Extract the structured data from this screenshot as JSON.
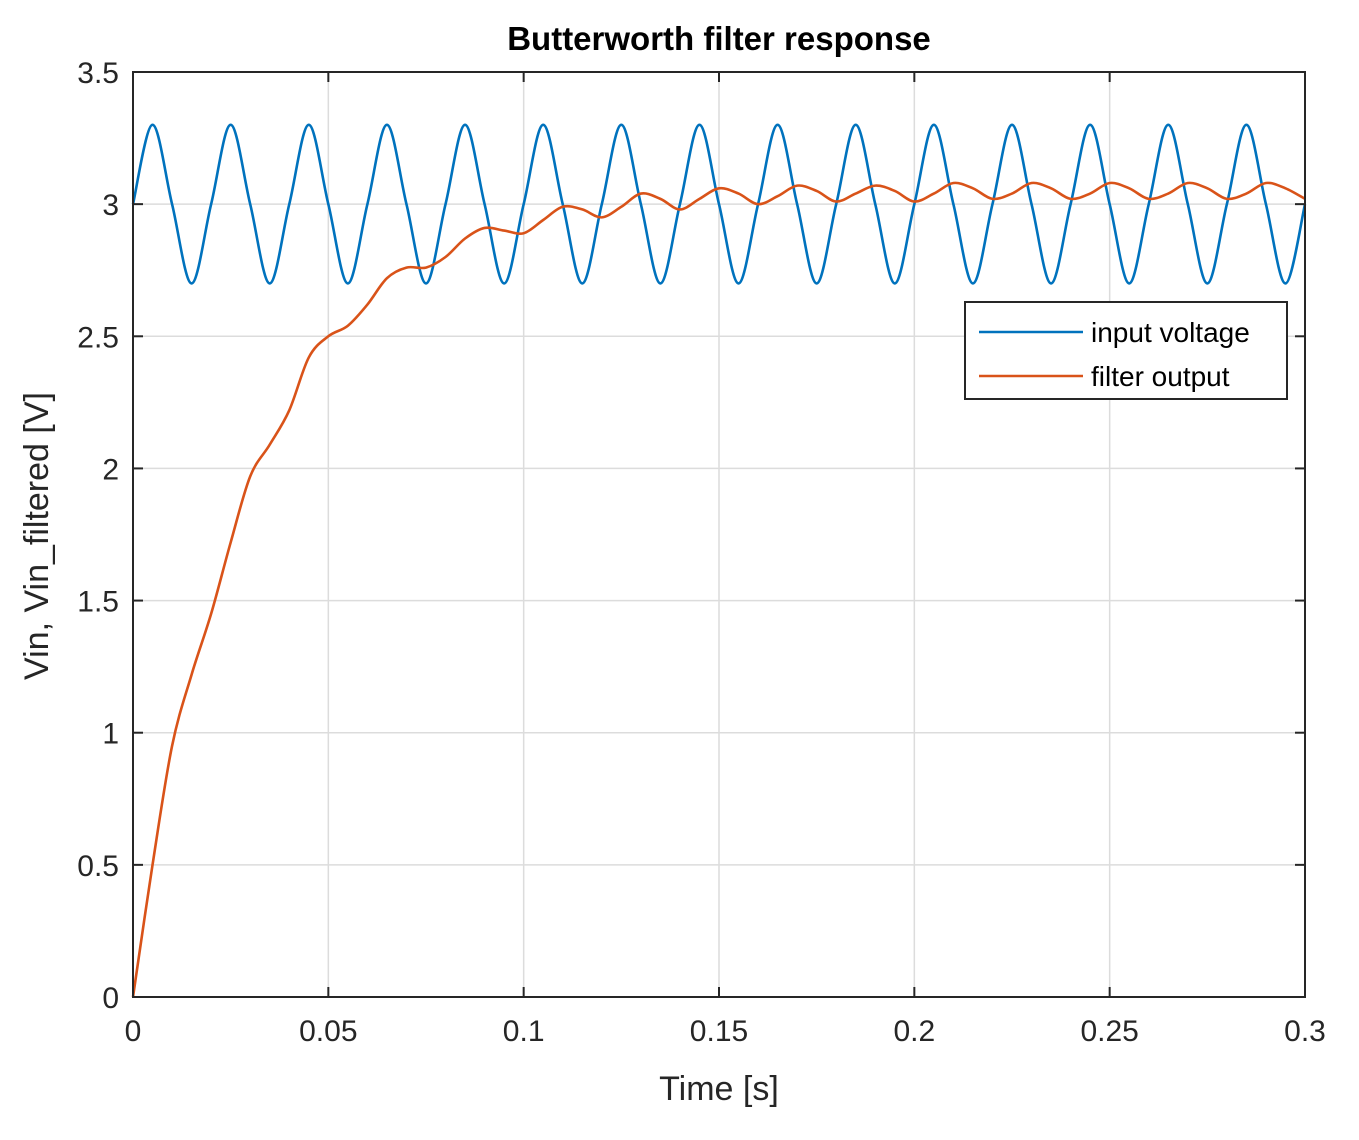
{
  "chart_data": {
    "type": "line",
    "title": "Butterworth filter response",
    "xlabel": "Time [s]",
    "ylabel": "Vin, Vin_filtered [V]",
    "xlim": [
      0,
      0.3
    ],
    "ylim": [
      0,
      3.5
    ],
    "x_ticks": [
      0,
      0.05,
      0.1,
      0.15,
      0.2,
      0.25,
      0.3
    ],
    "x_tick_labels": [
      "0",
      "0.05",
      "0.1",
      "0.15",
      "0.2",
      "0.25",
      "0.3"
    ],
    "y_ticks": [
      0,
      0.5,
      1,
      1.5,
      2,
      2.5,
      3,
      3.5
    ],
    "y_tick_labels": [
      "0",
      "0.5",
      "1",
      "1.5",
      "2",
      "2.5",
      "3",
      "3.5"
    ],
    "grid": true,
    "legend_position": "right, upper-middle",
    "series": [
      {
        "name": "input voltage",
        "color": "#0072BD",
        "points": [
          [
            0,
            3.0
          ],
          [
            0.005,
            3.3
          ],
          [
            0.01,
            3.0
          ],
          [
            0.015,
            2.7
          ],
          [
            0.02,
            3.0
          ],
          [
            0.025,
            3.3
          ],
          [
            0.03,
            3.0
          ],
          [
            0.035,
            2.7
          ],
          [
            0.04,
            3.0
          ],
          [
            0.045,
            3.3
          ],
          [
            0.05,
            3.0
          ],
          [
            0.055,
            2.7
          ],
          [
            0.06,
            3.0
          ],
          [
            0.065,
            3.3
          ],
          [
            0.07,
            3.0
          ],
          [
            0.075,
            2.7
          ],
          [
            0.08,
            3.0
          ],
          [
            0.085,
            3.3
          ],
          [
            0.09,
            3.0
          ],
          [
            0.095,
            2.7
          ],
          [
            0.1,
            3.0
          ],
          [
            0.105,
            3.3
          ],
          [
            0.11,
            3.0
          ],
          [
            0.115,
            2.7
          ],
          [
            0.12,
            3.0
          ],
          [
            0.125,
            3.3
          ],
          [
            0.13,
            3.0
          ],
          [
            0.135,
            2.7
          ],
          [
            0.14,
            3.0
          ],
          [
            0.145,
            3.3
          ],
          [
            0.15,
            3.0
          ],
          [
            0.155,
            2.7
          ],
          [
            0.16,
            3.0
          ],
          [
            0.165,
            3.3
          ],
          [
            0.17,
            3.0
          ],
          [
            0.175,
            2.7
          ],
          [
            0.18,
            3.0
          ],
          [
            0.185,
            3.3
          ],
          [
            0.19,
            3.0
          ],
          [
            0.195,
            2.7
          ],
          [
            0.2,
            3.0
          ],
          [
            0.205,
            3.3
          ],
          [
            0.21,
            3.0
          ],
          [
            0.215,
            2.7
          ],
          [
            0.22,
            3.0
          ],
          [
            0.225,
            3.3
          ],
          [
            0.23,
            3.0
          ],
          [
            0.235,
            2.7
          ],
          [
            0.24,
            3.0
          ],
          [
            0.245,
            3.3
          ],
          [
            0.25,
            3.0
          ],
          [
            0.255,
            2.7
          ],
          [
            0.26,
            3.0
          ],
          [
            0.265,
            3.3
          ],
          [
            0.27,
            3.0
          ],
          [
            0.275,
            2.7
          ],
          [
            0.28,
            3.0
          ],
          [
            0.285,
            3.3
          ],
          [
            0.29,
            3.0
          ],
          [
            0.295,
            2.7
          ],
          [
            0.3,
            3.0
          ]
        ]
      },
      {
        "name": "filter output",
        "color": "#D95319",
        "points": [
          [
            0,
            0
          ],
          [
            0.005,
            0.5
          ],
          [
            0.01,
            0.95
          ],
          [
            0.015,
            1.22
          ],
          [
            0.02,
            1.45
          ],
          [
            0.025,
            1.72
          ],
          [
            0.03,
            1.97
          ],
          [
            0.035,
            2.09
          ],
          [
            0.04,
            2.22
          ],
          [
            0.045,
            2.42
          ],
          [
            0.05,
            2.5
          ],
          [
            0.055,
            2.54
          ],
          [
            0.06,
            2.62
          ],
          [
            0.065,
            2.72
          ],
          [
            0.07,
            2.76
          ],
          [
            0.075,
            2.76
          ],
          [
            0.08,
            2.8
          ],
          [
            0.085,
            2.87
          ],
          [
            0.09,
            2.91
          ],
          [
            0.095,
            2.9
          ],
          [
            0.1,
            2.89
          ],
          [
            0.105,
            2.94
          ],
          [
            0.11,
            2.99
          ],
          [
            0.115,
            2.98
          ],
          [
            0.12,
            2.95
          ],
          [
            0.125,
            2.99
          ],
          [
            0.13,
            3.04
          ],
          [
            0.135,
            3.02
          ],
          [
            0.14,
            2.98
          ],
          [
            0.145,
            3.02
          ],
          [
            0.15,
            3.06
          ],
          [
            0.155,
            3.04
          ],
          [
            0.16,
            3.0
          ],
          [
            0.165,
            3.03
          ],
          [
            0.17,
            3.07
          ],
          [
            0.175,
            3.05
          ],
          [
            0.18,
            3.01
          ],
          [
            0.185,
            3.04
          ],
          [
            0.19,
            3.07
          ],
          [
            0.195,
            3.05
          ],
          [
            0.2,
            3.01
          ],
          [
            0.205,
            3.04
          ],
          [
            0.21,
            3.08
          ],
          [
            0.215,
            3.06
          ],
          [
            0.22,
            3.02
          ],
          [
            0.225,
            3.04
          ],
          [
            0.23,
            3.08
          ],
          [
            0.235,
            3.06
          ],
          [
            0.24,
            3.02
          ],
          [
            0.245,
            3.04
          ],
          [
            0.25,
            3.08
          ],
          [
            0.255,
            3.06
          ],
          [
            0.26,
            3.02
          ],
          [
            0.265,
            3.04
          ],
          [
            0.27,
            3.08
          ],
          [
            0.275,
            3.06
          ],
          [
            0.28,
            3.02
          ],
          [
            0.285,
            3.04
          ],
          [
            0.29,
            3.08
          ],
          [
            0.295,
            3.06
          ],
          [
            0.3,
            3.02
          ]
        ]
      }
    ]
  }
}
